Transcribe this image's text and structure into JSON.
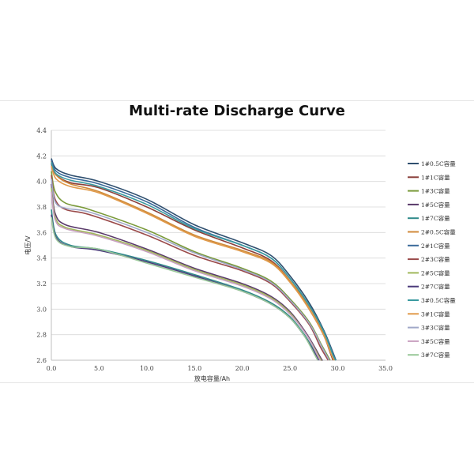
{
  "chart_data": {
    "type": "line",
    "title": "Multi-rate Discharge Curve",
    "xlabel": "放电容量/Ah",
    "ylabel": "电压/V",
    "xlim": [
      0,
      35
    ],
    "ylim": [
      2.6,
      4.4
    ],
    "x_ticks": [
      "0.0",
      "5.0",
      "10.0",
      "15.0",
      "20.0",
      "25.0",
      "30.0",
      "35.0"
    ],
    "y_ticks": [
      "2.6",
      "2.8",
      "3.0",
      "3.2",
      "3.4",
      "3.6",
      "3.8",
      "4.0",
      "4.2",
      "4.4"
    ],
    "grid": "horizontal",
    "legend_position": "right",
    "series": [
      {
        "name": "1#0.5C容量",
        "color": "#2f4f6f",
        "points": [
          [
            0,
            4.18
          ],
          [
            0.5,
            4.1
          ],
          [
            2,
            4.05
          ],
          [
            5,
            4.0
          ],
          [
            10,
            3.86
          ],
          [
            15,
            3.66
          ],
          [
            20,
            3.52
          ],
          [
            23,
            3.42
          ],
          [
            25,
            3.26
          ],
          [
            27,
            3.05
          ],
          [
            28.5,
            2.84
          ],
          [
            29.5,
            2.66
          ],
          [
            29.8,
            2.6
          ]
        ]
      },
      {
        "name": "1#1C容量",
        "color": "#8a3f3a",
        "points": [
          [
            0,
            4.14
          ],
          [
            0.5,
            4.05
          ],
          [
            2,
            3.99
          ],
          [
            5,
            3.95
          ],
          [
            10,
            3.8
          ],
          [
            15,
            3.62
          ],
          [
            20,
            3.48
          ],
          [
            23,
            3.38
          ],
          [
            25,
            3.22
          ],
          [
            27,
            3.0
          ],
          [
            28.5,
            2.8
          ],
          [
            29.2,
            2.66
          ],
          [
            29.5,
            2.6
          ]
        ]
      },
      {
        "name": "1#3C容量",
        "color": "#7a9a3a",
        "points": [
          [
            0,
            4.08
          ],
          [
            0.4,
            3.92
          ],
          [
            1.5,
            3.83
          ],
          [
            4,
            3.78
          ],
          [
            10,
            3.62
          ],
          [
            15,
            3.45
          ],
          [
            20,
            3.32
          ],
          [
            23,
            3.22
          ],
          [
            25,
            3.08
          ],
          [
            27,
            2.9
          ],
          [
            28.3,
            2.72
          ],
          [
            29.2,
            2.6
          ]
        ]
      },
      {
        "name": "1#5C容量",
        "color": "#5a3a6a",
        "points": [
          [
            0,
            3.98
          ],
          [
            0.4,
            3.75
          ],
          [
            1.5,
            3.66
          ],
          [
            5,
            3.6
          ],
          [
            10,
            3.47
          ],
          [
            15,
            3.32
          ],
          [
            20,
            3.2
          ],
          [
            23,
            3.1
          ],
          [
            25,
            2.98
          ],
          [
            26.8,
            2.8
          ],
          [
            28.2,
            2.62
          ],
          [
            28.4,
            2.6
          ]
        ]
      },
      {
        "name": "1#7C容量",
        "color": "#2f8a8a",
        "points": [
          [
            0,
            3.78
          ],
          [
            0.5,
            3.58
          ],
          [
            2,
            3.5
          ],
          [
            5,
            3.47
          ],
          [
            10,
            3.38
          ],
          [
            15,
            3.27
          ],
          [
            20,
            3.15
          ],
          [
            23,
            3.05
          ],
          [
            25,
            2.94
          ],
          [
            26.5,
            2.8
          ],
          [
            27.8,
            2.64
          ],
          [
            28.1,
            2.6
          ]
        ]
      },
      {
        "name": "2#0.5C容量",
        "color": "#d08a3a",
        "points": [
          [
            0,
            4.16
          ],
          [
            0.5,
            4.05
          ],
          [
            2,
            3.98
          ],
          [
            5,
            3.92
          ],
          [
            10,
            3.76
          ],
          [
            15,
            3.58
          ],
          [
            20,
            3.46
          ],
          [
            23,
            3.37
          ],
          [
            25,
            3.22
          ],
          [
            27,
            3.02
          ],
          [
            28.5,
            2.82
          ],
          [
            29.5,
            2.64
          ],
          [
            29.7,
            2.6
          ]
        ]
      },
      {
        "name": "2#1C容量",
        "color": "#3a6a9a",
        "points": [
          [
            0,
            4.17
          ],
          [
            0.5,
            4.08
          ],
          [
            2,
            4.03
          ],
          [
            5,
            3.98
          ],
          [
            10,
            3.84
          ],
          [
            15,
            3.64
          ],
          [
            20,
            3.5
          ],
          [
            23,
            3.4
          ],
          [
            25,
            3.24
          ],
          [
            27,
            3.03
          ],
          [
            28.5,
            2.83
          ],
          [
            29.5,
            2.65
          ],
          [
            29.8,
            2.6
          ]
        ]
      },
      {
        "name": "2#3C容量",
        "color": "#9a4a4a",
        "points": [
          [
            0,
            4.05
          ],
          [
            0.4,
            3.86
          ],
          [
            1.5,
            3.78
          ],
          [
            4,
            3.74
          ],
          [
            10,
            3.58
          ],
          [
            15,
            3.42
          ],
          [
            20,
            3.3
          ],
          [
            23,
            3.2
          ],
          [
            25,
            3.06
          ],
          [
            27,
            2.88
          ],
          [
            28.2,
            2.7
          ],
          [
            29.0,
            2.6
          ]
        ]
      },
      {
        "name": "2#5C容量",
        "color": "#a0b85a",
        "points": [
          [
            0,
            3.95
          ],
          [
            0.4,
            3.72
          ],
          [
            1.5,
            3.64
          ],
          [
            5,
            3.58
          ],
          [
            10,
            3.46
          ],
          [
            15,
            3.31
          ],
          [
            20,
            3.19
          ],
          [
            23,
            3.09
          ],
          [
            25,
            2.97
          ],
          [
            26.8,
            2.79
          ],
          [
            28.1,
            2.62
          ],
          [
            28.3,
            2.6
          ]
        ]
      },
      {
        "name": "2#7C容量",
        "color": "#4a3a7a",
        "points": [
          [
            0,
            3.74
          ],
          [
            0.5,
            3.56
          ],
          [
            2,
            3.49
          ],
          [
            5,
            3.46
          ],
          [
            10,
            3.37
          ],
          [
            15,
            3.26
          ],
          [
            20,
            3.14
          ],
          [
            23,
            3.04
          ],
          [
            25,
            2.93
          ],
          [
            26.5,
            2.79
          ],
          [
            27.7,
            2.64
          ],
          [
            28.0,
            2.6
          ]
        ]
      },
      {
        "name": "3#0.5C容量",
        "color": "#3a9aa0",
        "points": [
          [
            0,
            4.15
          ],
          [
            0.5,
            4.06
          ],
          [
            2,
            4.01
          ],
          [
            5,
            3.96
          ],
          [
            10,
            3.82
          ],
          [
            15,
            3.63
          ],
          [
            20,
            3.5
          ],
          [
            23,
            3.4
          ],
          [
            25,
            3.24
          ],
          [
            27,
            3.03
          ],
          [
            28.5,
            2.83
          ],
          [
            29.5,
            2.64
          ],
          [
            29.8,
            2.6
          ]
        ]
      },
      {
        "name": "3#1C容量",
        "color": "#e09a4a",
        "points": [
          [
            0,
            4.12
          ],
          [
            0.5,
            4.02
          ],
          [
            2,
            3.96
          ],
          [
            5,
            3.91
          ],
          [
            10,
            3.75
          ],
          [
            15,
            3.57
          ],
          [
            20,
            3.45
          ],
          [
            23,
            3.36
          ],
          [
            25,
            3.21
          ],
          [
            27,
            3.0
          ],
          [
            28.5,
            2.8
          ],
          [
            29.3,
            2.65
          ],
          [
            29.6,
            2.6
          ]
        ]
      },
      {
        "name": "3#3C容量",
        "color": "#a0a8c8",
        "points": [
          [
            0,
            4.02
          ],
          [
            0.4,
            3.84
          ],
          [
            1.5,
            3.79
          ],
          [
            4,
            3.76
          ],
          [
            10,
            3.6
          ],
          [
            15,
            3.44
          ],
          [
            20,
            3.31
          ],
          [
            23,
            3.21
          ],
          [
            25,
            3.07
          ],
          [
            27,
            2.89
          ],
          [
            28.3,
            2.71
          ],
          [
            29.1,
            2.6
          ]
        ]
      },
      {
        "name": "3#5C容量",
        "color": "#c8a0c0",
        "points": [
          [
            0,
            3.92
          ],
          [
            0.4,
            3.7
          ],
          [
            1.5,
            3.63
          ],
          [
            5,
            3.57
          ],
          [
            10,
            3.45
          ],
          [
            15,
            3.3
          ],
          [
            20,
            3.18
          ],
          [
            23,
            3.08
          ],
          [
            25,
            2.96
          ],
          [
            26.8,
            2.79
          ],
          [
            28.0,
            2.62
          ],
          [
            28.2,
            2.6
          ]
        ]
      },
      {
        "name": "3#7C容量",
        "color": "#9ac89a",
        "points": [
          [
            0,
            3.72
          ],
          [
            0.5,
            3.55
          ],
          [
            2,
            3.49
          ],
          [
            5,
            3.47
          ],
          [
            10,
            3.36
          ],
          [
            15,
            3.25
          ],
          [
            20,
            3.14
          ],
          [
            23,
            3.04
          ],
          [
            25,
            2.93
          ],
          [
            26.5,
            2.79
          ],
          [
            27.6,
            2.64
          ],
          [
            27.9,
            2.6
          ]
        ]
      }
    ]
  }
}
